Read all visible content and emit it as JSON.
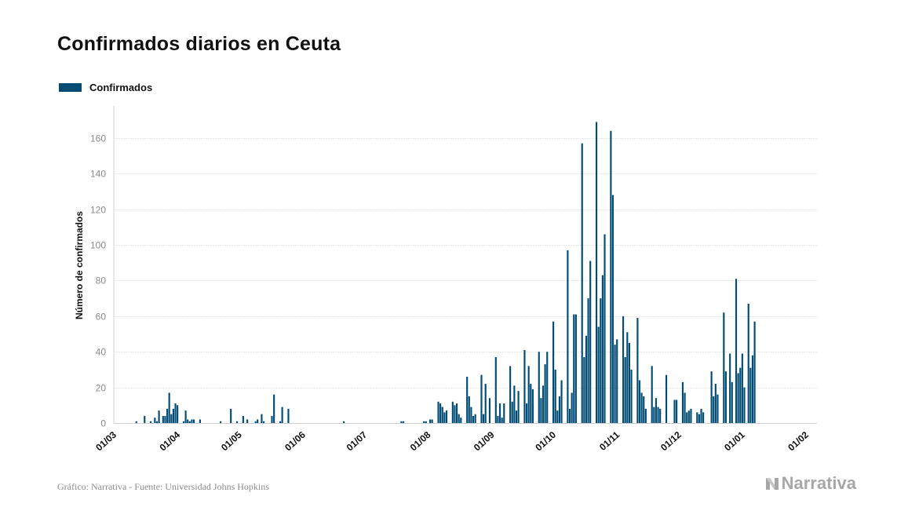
{
  "title": "Confirmados diarios en Ceuta",
  "legend": {
    "label": "Confirmados",
    "color": "#004c75"
  },
  "footer": {
    "source": "Gráfico: Narrativa - Fuente: Universidad Johns Hopkins",
    "brand": "Narrativa"
  },
  "chart_data": {
    "type": "bar",
    "ylabel": "Número de confirmados",
    "xlabel": "",
    "ylim": [
      0,
      178
    ],
    "yticks": [
      0,
      20,
      40,
      60,
      80,
      100,
      120,
      140,
      160
    ],
    "grid": true,
    "legend_position": "top-left",
    "color": "#004c75",
    "x_start": "2020-03-01",
    "x_end": "2021-02-01",
    "xticks": [
      "01/03",
      "01/04",
      "01/05",
      "01/06",
      "01/07",
      "01/08",
      "01/09",
      "01/10",
      "01/11",
      "01/12",
      "01/01",
      "01/02"
    ],
    "series": [
      {
        "name": "Confirmados",
        "points": [
          [
            "2020-03-12",
            1
          ],
          [
            "2020-03-16",
            4
          ],
          [
            "2020-03-19",
            1
          ],
          [
            "2020-03-21",
            3
          ],
          [
            "2020-03-22",
            1
          ],
          [
            "2020-03-23",
            7
          ],
          [
            "2020-03-25",
            4
          ],
          [
            "2020-03-26",
            4
          ],
          [
            "2020-03-27",
            8
          ],
          [
            "2020-03-28",
            17
          ],
          [
            "2020-03-29",
            5
          ],
          [
            "2020-03-30",
            8
          ],
          [
            "2020-03-31",
            11
          ],
          [
            "2020-04-01",
            10
          ],
          [
            "2020-04-04",
            1
          ],
          [
            "2020-04-05",
            7
          ],
          [
            "2020-04-06",
            2
          ],
          [
            "2020-04-07",
            1
          ],
          [
            "2020-04-08",
            2
          ],
          [
            "2020-04-09",
            2
          ],
          [
            "2020-04-12",
            2
          ],
          [
            "2020-04-22",
            1
          ],
          [
            "2020-04-27",
            8
          ],
          [
            "2020-04-30",
            1
          ],
          [
            "2020-05-03",
            4
          ],
          [
            "2020-05-05",
            2
          ],
          [
            "2020-05-09",
            1
          ],
          [
            "2020-05-10",
            2
          ],
          [
            "2020-05-12",
            5
          ],
          [
            "2020-05-13",
            1
          ],
          [
            "2020-05-17",
            4
          ],
          [
            "2020-05-18",
            16
          ],
          [
            "2020-05-21",
            1
          ],
          [
            "2020-05-22",
            9
          ],
          [
            "2020-05-25",
            8
          ],
          [
            "2020-06-21",
            1
          ],
          [
            "2020-07-19",
            1
          ],
          [
            "2020-07-20",
            1
          ],
          [
            "2020-07-30",
            1
          ],
          [
            "2020-07-31",
            1
          ],
          [
            "2020-08-02",
            2
          ],
          [
            "2020-08-03",
            2
          ],
          [
            "2020-08-06",
            12
          ],
          [
            "2020-08-07",
            11
          ],
          [
            "2020-08-08",
            9
          ],
          [
            "2020-08-09",
            6
          ],
          [
            "2020-08-10",
            7
          ],
          [
            "2020-08-13",
            12
          ],
          [
            "2020-08-14",
            10
          ],
          [
            "2020-08-15",
            11
          ],
          [
            "2020-08-16",
            5
          ],
          [
            "2020-08-17",
            3
          ],
          [
            "2020-08-20",
            26
          ],
          [
            "2020-08-21",
            15
          ],
          [
            "2020-08-22",
            9
          ],
          [
            "2020-08-23",
            4
          ],
          [
            "2020-08-24",
            5
          ],
          [
            "2020-08-27",
            27
          ],
          [
            "2020-08-28",
            5
          ],
          [
            "2020-08-29",
            22
          ],
          [
            "2020-08-31",
            14
          ],
          [
            "2020-09-03",
            37
          ],
          [
            "2020-09-04",
            4
          ],
          [
            "2020-09-05",
            11
          ],
          [
            "2020-09-06",
            3
          ],
          [
            "2020-09-07",
            11
          ],
          [
            "2020-09-10",
            32
          ],
          [
            "2020-09-11",
            12
          ],
          [
            "2020-09-12",
            21
          ],
          [
            "2020-09-13",
            7
          ],
          [
            "2020-09-14",
            18
          ],
          [
            "2020-09-17",
            41
          ],
          [
            "2020-09-18",
            11
          ],
          [
            "2020-09-19",
            32
          ],
          [
            "2020-09-20",
            22
          ],
          [
            "2020-09-21",
            19
          ],
          [
            "2020-09-24",
            40
          ],
          [
            "2020-09-25",
            14
          ],
          [
            "2020-09-26",
            21
          ],
          [
            "2020-09-27",
            33
          ],
          [
            "2020-09-28",
            40
          ],
          [
            "2020-10-01",
            57
          ],
          [
            "2020-10-02",
            30
          ],
          [
            "2020-10-03",
            7
          ],
          [
            "2020-10-04",
            15
          ],
          [
            "2020-10-05",
            24
          ],
          [
            "2020-10-08",
            97
          ],
          [
            "2020-10-09",
            8
          ],
          [
            "2020-10-10",
            17
          ],
          [
            "2020-10-11",
            61
          ],
          [
            "2020-10-12",
            61
          ],
          [
            "2020-10-15",
            157
          ],
          [
            "2020-10-16",
            37
          ],
          [
            "2020-10-17",
            49
          ],
          [
            "2020-10-18",
            70
          ],
          [
            "2020-10-19",
            91
          ],
          [
            "2020-10-22",
            169
          ],
          [
            "2020-10-23",
            54
          ],
          [
            "2020-10-24",
            70
          ],
          [
            "2020-10-25",
            83
          ],
          [
            "2020-10-26",
            106
          ],
          [
            "2020-10-29",
            164
          ],
          [
            "2020-10-30",
            128
          ],
          [
            "2020-10-31",
            44
          ],
          [
            "2020-11-01",
            47
          ],
          [
            "2020-11-04",
            60
          ],
          [
            "2020-11-05",
            37
          ],
          [
            "2020-11-06",
            51
          ],
          [
            "2020-11-07",
            45
          ],
          [
            "2020-11-08",
            30
          ],
          [
            "2020-11-11",
            59
          ],
          [
            "2020-11-12",
            24
          ],
          [
            "2020-11-13",
            17
          ],
          [
            "2020-11-14",
            15
          ],
          [
            "2020-11-15",
            8
          ],
          [
            "2020-11-18",
            32
          ],
          [
            "2020-11-19",
            9
          ],
          [
            "2020-11-20",
            14
          ],
          [
            "2020-11-21",
            9
          ],
          [
            "2020-11-22",
            8
          ],
          [
            "2020-11-25",
            27
          ],
          [
            "2020-11-29",
            13
          ],
          [
            "2020-11-30",
            13
          ],
          [
            "2020-12-03",
            23
          ],
          [
            "2020-12-04",
            17
          ],
          [
            "2020-12-05",
            6
          ],
          [
            "2020-12-06",
            7
          ],
          [
            "2020-12-07",
            8
          ],
          [
            "2020-12-10",
            6
          ],
          [
            "2020-12-11",
            5
          ],
          [
            "2020-12-12",
            8
          ],
          [
            "2020-12-13",
            6
          ],
          [
            "2020-12-17",
            29
          ],
          [
            "2020-12-18",
            15
          ],
          [
            "2020-12-19",
            22
          ],
          [
            "2020-12-20",
            16
          ],
          [
            "2020-12-23",
            62
          ],
          [
            "2020-12-24",
            29
          ],
          [
            "2020-12-26",
            39
          ],
          [
            "2020-12-27",
            23
          ],
          [
            "2020-12-29",
            81
          ],
          [
            "2020-12-30",
            28
          ],
          [
            "2020-12-31",
            31
          ],
          [
            "2021-01-01",
            39
          ],
          [
            "2021-01-02",
            20
          ],
          [
            "2021-01-04",
            67
          ],
          [
            "2021-01-05",
            31
          ],
          [
            "2021-01-06",
            38
          ],
          [
            "2021-01-07",
            57
          ]
        ]
      }
    ]
  }
}
